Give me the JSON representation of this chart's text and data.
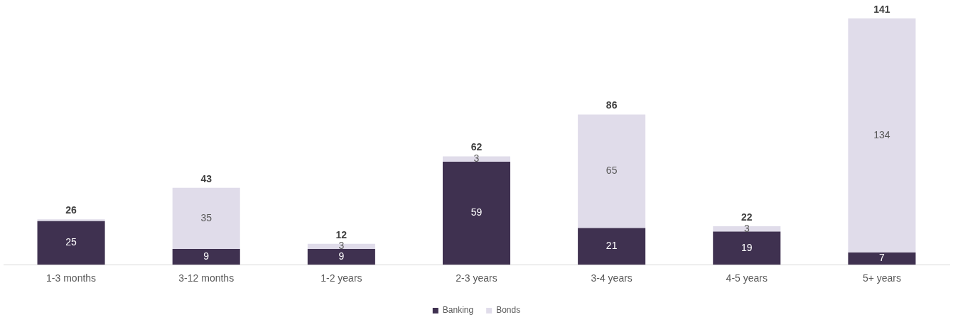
{
  "chart_data": {
    "type": "bar",
    "stacked": true,
    "legend": "bottom",
    "grid": false,
    "categories": [
      "1-3 months",
      "3-12 months",
      "1-2 years",
      "2-3 years",
      "3-4 years",
      "4-5 years",
      "5+ years"
    ],
    "series": [
      {
        "name": "Banking",
        "color": "#3f3150",
        "values": [
          25,
          9,
          9,
          59,
          21,
          19,
          7
        ],
        "value_labels": [
          "25",
          "9",
          "9",
          "59",
          "21",
          "19",
          "7"
        ]
      },
      {
        "name": "Bonds",
        "color": "#e0dcea",
        "values": [
          1,
          35,
          3,
          3,
          65,
          3,
          134
        ],
        "value_labels": [
          null,
          "35",
          "3",
          "3",
          "65",
          "3",
          "134"
        ]
      }
    ],
    "totals": [
      "26",
      "43",
      "12",
      "62",
      "86",
      "22",
      "141"
    ]
  }
}
